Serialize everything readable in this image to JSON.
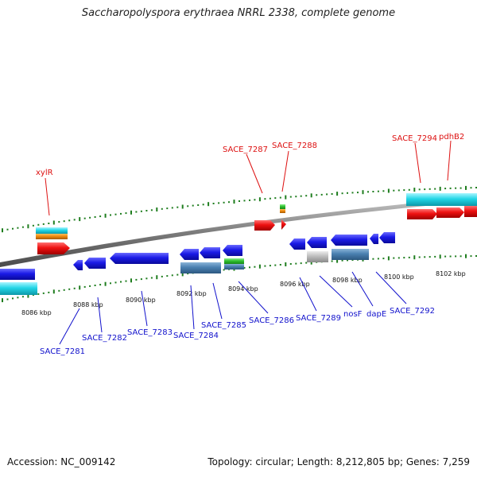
{
  "title": "Saccharopolyspora erythraea NRRL 2338, complete genome",
  "footer": {
    "accession": "Accession: NC_009142",
    "summary": "Topology: circular; Length: 8,212,805 bp; Genes: 7,259"
  },
  "colors": {
    "backbone": "#8c8c8c",
    "tick": "#1e7d1e",
    "forward_label": "#dd1111",
    "reverse_label": "#1111cc",
    "gene": "#1a1ae6",
    "cds_red": "#ee1111",
    "rna_cyan": "#22d6e6",
    "orange": "#f08c10",
    "green": "#30c030",
    "steel": "#4a80b0",
    "grey": "#bdbdbd"
  },
  "axis": {
    "kbp_labels": [
      "8086 kbp",
      "8088 kbp",
      "8090 kbp",
      "8092 kbp",
      "8094 kbp",
      "8096 kbp",
      "8098 kbp",
      "8100 kbp",
      "8102 kbp"
    ]
  },
  "forward_labels": [
    "xylR",
    "SACE_7287",
    "SACE_7288",
    "SACE_7294",
    "pdhB2"
  ],
  "reverse_labels": [
    "SACE_7281",
    "SACE_7282",
    "SACE_7283",
    "SACE_7284",
    "SACE_7285",
    "SACE_7286",
    "SACE_7289",
    "nosF",
    "dapE",
    "SACE_7292"
  ]
}
